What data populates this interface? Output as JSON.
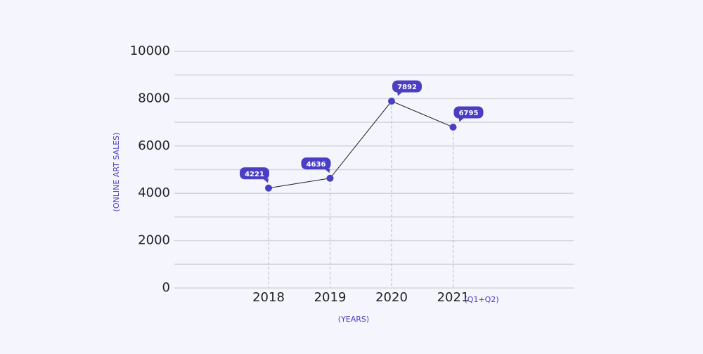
{
  "chart_data": {
    "type": "line",
    "categories": [
      "2018",
      "2019",
      "2020",
      "2021"
    ],
    "category_note": "(Q1+Q2)",
    "values": [
      4221,
      4636,
      7892,
      6795
    ],
    "color": "#4a3fc4",
    "line_color": "#222222",
    "ylim": [
      0,
      10000
    ],
    "yticks": [
      0,
      2000,
      4000,
      6000,
      8000,
      10000
    ],
    "minor_yticks": [
      1000,
      3000,
      5000,
      7000,
      9000
    ],
    "grid": true,
    "x_label": "(YEARS)",
    "y_label": "(ONLINE ART SALES)"
  }
}
